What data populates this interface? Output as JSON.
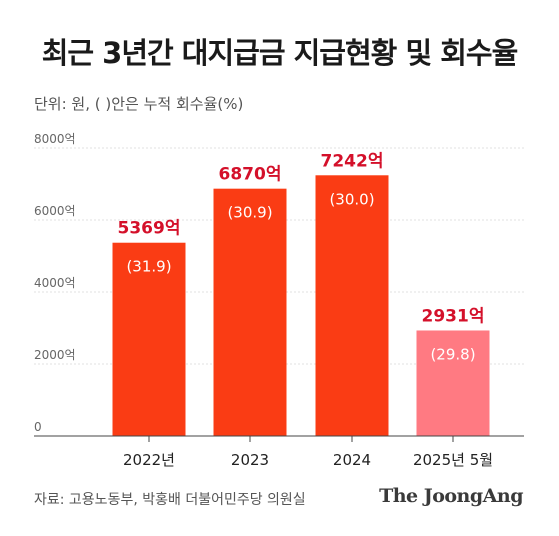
{
  "title": "최근 3년간 대지급금 지급현황 및 회수율",
  "unit_note": "단위: 원, (   )안은 누적 회수율(%)",
  "source": "자료: 고용노동부, 박홍배 더불어민주당 의원실",
  "brand": "The JoongAng",
  "colors": {
    "bar": "#fa3c14",
    "bar_highlight": "#ff7a82",
    "value_label": "#d4102a",
    "axis": "#444444",
    "grid": "#e0e0e0"
  },
  "chart_data": {
    "type": "bar",
    "title": "최근 3년간 대지급금 지급현황 및 회수율",
    "categories": [
      "2022년",
      "2023",
      "2024",
      "2025년 5월"
    ],
    "values": [
      5369,
      6870,
      7242,
      2931
    ],
    "value_labels": [
      "5369억",
      "6870억",
      "7242억",
      "2931억"
    ],
    "rate_labels": [
      "(31.9)",
      "(30.9)",
      "(30.0)",
      "(29.8)"
    ],
    "highlight_index": 3,
    "yticks": [
      0,
      2000,
      4000,
      6000,
      8000
    ],
    "ytick_labels": [
      "0",
      "2000억",
      "4000억",
      "6000억",
      "8000억"
    ],
    "ylim": [
      0,
      8000
    ],
    "grid": true,
    "xlabel": "",
    "ylabel": ""
  }
}
